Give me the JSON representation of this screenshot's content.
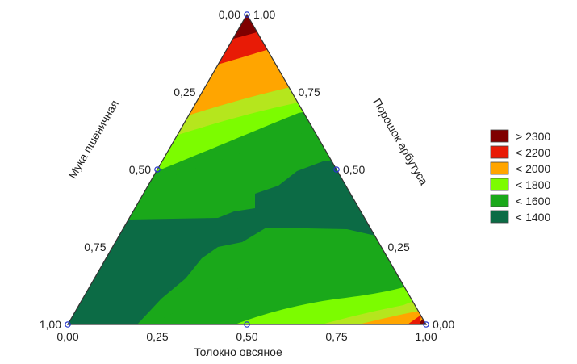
{
  "chart_data": {
    "type": "ternary contour",
    "axes": {
      "bottom": {
        "label": "Толокно овсяное",
        "ticks": [
          "0,00",
          "0,25",
          "0,50",
          "0,75",
          "1,00"
        ]
      },
      "left": {
        "label": "Мука пшеничная",
        "ticks": [
          "1,00",
          "0,75",
          "0,50",
          "0,25",
          "0,00"
        ]
      },
      "right": {
        "label": "Порошок арбутуса",
        "ticks": [
          "1,00",
          "0,75",
          "0,50",
          "0,25",
          "0,00"
        ]
      }
    },
    "design_points": [
      {
        "a": 1.0,
        "b": 0.0,
        "c": 0.0
      },
      {
        "a": 0.0,
        "b": 1.0,
        "c": 0.0
      },
      {
        "a": 0.0,
        "b": 0.0,
        "c": 1.0
      },
      {
        "a": 0.5,
        "b": 0.5,
        "c": 0.0
      },
      {
        "a": 0.5,
        "b": 0.0,
        "c": 0.5
      },
      {
        "a": 0.0,
        "b": 0.5,
        "c": 0.5
      }
    ],
    "legend": {
      "position": "right",
      "items": [
        {
          "label": "> 2300",
          "color": "#7f0000"
        },
        {
          "label": "< 2200",
          "color": "#e81b06"
        },
        {
          "label": "< 2000",
          "color": "#ffa500"
        },
        {
          "label": "< 1800",
          "color": "#7cfc00"
        },
        {
          "label": "< 1600",
          "color": "#1aa81a"
        },
        {
          "label": "< 1400",
          "color": "#0c6b45"
        }
      ]
    },
    "contour_levels": [
      1400,
      1600,
      1800,
      2000,
      2200,
      2300
    ]
  }
}
